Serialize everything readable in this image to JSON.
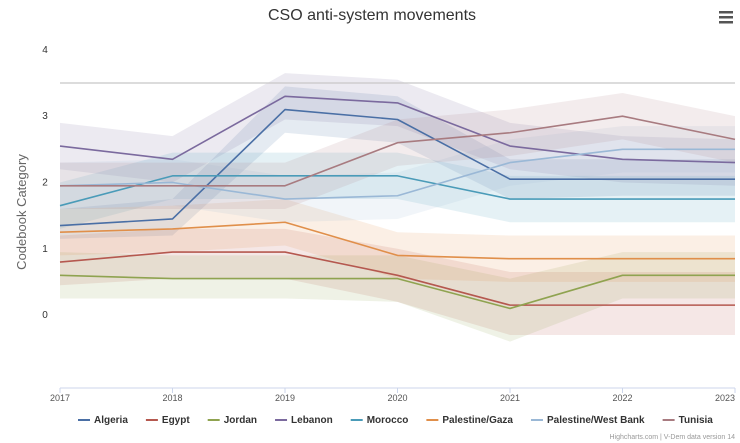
{
  "chart_data": {
    "type": "line",
    "title": "CSO anti-system movements",
    "xlabel": "",
    "ylabel": "Codebook Category",
    "x": [
      "2017",
      "2018",
      "2019",
      "2020",
      "2021",
      "2022",
      "2023"
    ],
    "yticks": [
      "0",
      "1",
      "2",
      "3",
      "4"
    ],
    "ylim": [
      -1.1,
      4.3
    ],
    "reference_line": 3.5,
    "legend_position": "bottom",
    "grid": false,
    "credits": "Highcharts.com | V-Dem data version 14",
    "series": [
      {
        "name": "Algeria",
        "color": "#4a6fa5",
        "values": [
          1.35,
          1.45,
          3.1,
          2.95,
          2.05,
          2.05,
          2.05
        ],
        "lower": [
          1.15,
          1.2,
          2.75,
          2.6,
          1.75,
          1.8,
          1.8
        ],
        "upper": [
          1.6,
          1.75,
          3.45,
          3.3,
          2.35,
          2.35,
          2.35
        ]
      },
      {
        "name": "Egypt",
        "color": "#b5584f",
        "values": [
          0.8,
          0.95,
          0.95,
          0.6,
          0.15,
          0.15,
          0.15
        ],
        "lower": [
          0.45,
          0.55,
          0.55,
          0.2,
          -0.3,
          -0.3,
          -0.3
        ],
        "upper": [
          1.2,
          1.3,
          1.3,
          1.0,
          0.65,
          0.65,
          0.65
        ]
      },
      {
        "name": "Jordan",
        "color": "#8fa350",
        "values": [
          0.6,
          0.55,
          0.55,
          0.55,
          0.1,
          0.6,
          0.6
        ],
        "lower": [
          0.25,
          0.25,
          0.25,
          0.2,
          -0.4,
          0.25,
          0.25
        ],
        "upper": [
          0.95,
          0.9,
          0.9,
          0.9,
          0.55,
          0.95,
          0.95
        ]
      },
      {
        "name": "Lebanon",
        "color": "#7b6a9e",
        "values": [
          2.55,
          2.35,
          3.3,
          3.2,
          2.55,
          2.35,
          2.3
        ],
        "lower": [
          2.2,
          2.0,
          2.95,
          2.85,
          2.2,
          2.0,
          1.95
        ],
        "upper": [
          2.9,
          2.7,
          3.65,
          3.55,
          2.9,
          2.7,
          2.65
        ]
      },
      {
        "name": "Morocco",
        "color": "#4a9bb8",
        "values": [
          1.65,
          2.1,
          2.1,
          2.1,
          1.75,
          1.75,
          1.75
        ],
        "lower": [
          1.3,
          1.75,
          1.75,
          1.75,
          1.4,
          1.4,
          1.4
        ],
        "upper": [
          2.0,
          2.45,
          2.45,
          2.45,
          2.1,
          2.1,
          2.1
        ]
      },
      {
        "name": "Palestine/Gaza",
        "color": "#e08f4a",
        "values": [
          1.25,
          1.3,
          1.4,
          0.9,
          0.85,
          0.85,
          0.85
        ],
        "lower": [
          0.9,
          0.95,
          1.05,
          0.55,
          0.5,
          0.5,
          0.5
        ],
        "upper": [
          1.6,
          1.65,
          1.75,
          1.25,
          1.2,
          1.2,
          1.2
        ]
      },
      {
        "name": "Palestine/West Bank",
        "color": "#9ab8d6",
        "values": [
          1.95,
          2.0,
          1.75,
          1.8,
          2.3,
          2.5,
          2.5
        ],
        "lower": [
          1.6,
          1.65,
          1.4,
          1.45,
          1.95,
          2.15,
          2.15
        ],
        "upper": [
          2.3,
          2.35,
          2.1,
          2.15,
          2.65,
          2.85,
          2.85
        ]
      },
      {
        "name": "Tunisia",
        "color": "#a87b80",
        "values": [
          1.95,
          1.95,
          1.95,
          2.6,
          2.75,
          3.0,
          2.65
        ],
        "lower": [
          1.6,
          1.6,
          1.6,
          2.25,
          2.4,
          2.65,
          2.3
        ],
        "upper": [
          2.3,
          2.3,
          2.3,
          2.95,
          3.1,
          3.35,
          3.0
        ]
      }
    ]
  },
  "menu": {
    "icon": "hamburger-menu-icon"
  }
}
